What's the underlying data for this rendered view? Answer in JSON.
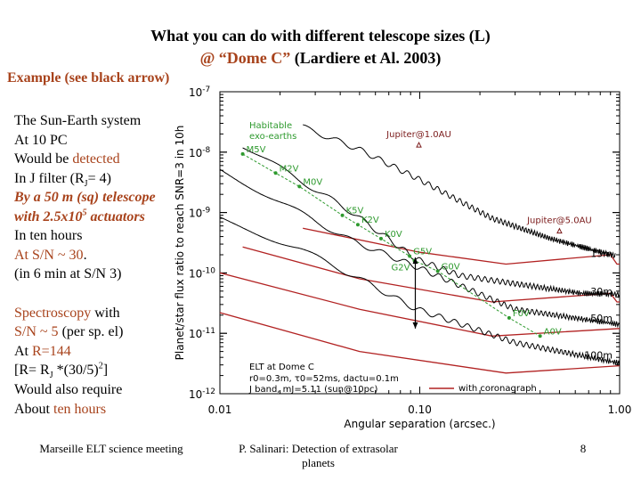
{
  "slide": {
    "title_line1": "What you can do with different telescope sizes (L)",
    "title_line2_colored": "@ “Dome C”",
    "title_line2_rest": " (Lardiere et Al. 2003)",
    "example_label": "Example (see black arrow)",
    "left_text": {
      "l1": "The Sun-Earth system",
      "l2": "At 10 PC",
      "l3a": "Would be ",
      "l3b": "detected",
      "l4a": "In J filter (R",
      "l4sub": "J",
      "l4b": "= 4)",
      "l5": "By a 50 m (sq) telescope",
      "l6a": "with 2.5x10",
      "l6sup": "5",
      "l6b": " actuators",
      "l7": "In ten hours",
      "l8a": "At S/N ~ 30",
      "l8b": ".",
      "l9": "(in 6 min at S/N 3)",
      "s1a": "Spectroscopy",
      "s1b": " with",
      "s2a": "S/N ~ 5",
      "s2b": " (per sp. el)",
      "s3a": "At ",
      "s3b": "R=144",
      "s4a": "[R= R",
      "s4sub": "J",
      "s4b": " *(30/5)",
      "s4sup": "2",
      "s4c": "]",
      "s5": "Would also require",
      "s6a": "About ",
      "s6b": "ten hours"
    },
    "footer": {
      "left": "Marseille ELT science meeting",
      "center_line1": "P. Salinari: Detection of extrasolar",
      "center_line2": "planets",
      "page_number": "8"
    },
    "colors": {
      "accent_brown": "#a8431c",
      "coronagraph_red": "#b22222",
      "habitable_green": "#2e9a2e",
      "jupiter_marker": "#7a1a1a"
    }
  },
  "chart_data": {
    "type": "line",
    "xlabel": "Angular separation (arcsec.)",
    "ylabel": "Planet/star flux ratio to reach SNR=3 in 10h",
    "xscale": "log",
    "yscale": "log",
    "xlim": [
      0.01,
      1.0
    ],
    "ylim": [
      1e-12,
      1e-07
    ],
    "x_tick_labels": [
      "0.01",
      "0.10",
      "1.00"
    ],
    "y_tick_labels": [
      {
        "base": "10",
        "exp": "-7"
      },
      {
        "base": "10",
        "exp": "-8"
      },
      {
        "base": "10",
        "exp": "-9"
      },
      {
        "base": "10",
        "exp": "-10"
      },
      {
        "base": "10",
        "exp": "-11"
      },
      {
        "base": "10",
        "exp": "-12"
      }
    ],
    "grid": false,
    "series": [
      {
        "name": "15m",
        "without_coronagraph": [
          [
            0.026,
            2.6e-08
          ],
          [
            0.05,
            1.1e-08
          ],
          [
            0.1,
            3.5e-09
          ],
          [
            0.23,
            8e-10
          ],
          [
            0.45,
            3.7e-10
          ],
          [
            0.96,
            1.9e-10
          ]
        ],
        "with_coronagraph": [
          [
            0.026,
            5.5e-10
          ],
          [
            0.1,
            2.2e-10
          ],
          [
            0.27,
            1.4e-10
          ],
          [
            0.9,
            2e-10
          ],
          [
            0.97,
            1.4e-10
          ],
          [
            1.0,
            1.4e-10
          ]
        ]
      },
      {
        "name": "30m",
        "without_coronagraph": [
          [
            0.013,
            1.3e-08
          ],
          [
            0.044,
            1.1e-09
          ],
          [
            0.096,
            1.7e-10
          ],
          [
            0.16,
            9e-11
          ],
          [
            0.64,
            4.6e-11
          ],
          [
            1.0,
            4.4e-11
          ]
        ],
        "with_coronagraph": [
          [
            0.013,
            2.7e-10
          ],
          [
            0.05,
            8e-11
          ],
          [
            0.23,
            3.3e-11
          ],
          [
            0.9,
            4.6e-11
          ],
          [
            0.97,
            3.3e-11
          ],
          [
            1.0,
            3.3e-11
          ]
        ]
      },
      {
        "name": "50m",
        "without_coronagraph": [
          [
            0.01,
            5.2e-09
          ],
          [
            0.025,
            1e-09
          ],
          [
            0.045,
            3.5e-10
          ],
          [
            0.1,
            1.2e-10
          ],
          [
            0.3,
            2.5e-11
          ],
          [
            1.0,
            1.4e-11
          ]
        ],
        "with_coronagraph": [
          [
            0.01,
            1e-10
          ],
          [
            0.05,
            2.5e-11
          ],
          [
            0.23,
            9e-12
          ],
          [
            1.0,
            1.2e-11
          ]
        ]
      },
      {
        "name": "100m",
        "without_coronagraph": [
          [
            0.01,
            8e-10
          ],
          [
            0.025,
            2.5e-10
          ],
          [
            0.05,
            8e-11
          ],
          [
            0.094,
            2.6e-11
          ],
          [
            0.3,
            7e-12
          ],
          [
            1.0,
            3.2e-12
          ]
        ],
        "with_coronagraph": [
          [
            0.01,
            2.2e-11
          ],
          [
            0.05,
            5e-12
          ],
          [
            0.27,
            2.2e-12
          ],
          [
            1.0,
            2.9e-12
          ]
        ]
      }
    ],
    "habitable_exo_earths": {
      "label_line1": "Habitable",
      "label_line2": "exo-earths",
      "points": [
        {
          "label": "M5V",
          "x": 0.013,
          "y": 9.3e-09
        },
        {
          "label": "M2V",
          "x": 0.019,
          "y": 4.5e-09
        },
        {
          "label": "M0V",
          "x": 0.025,
          "y": 2.7e-09
        },
        {
          "label": "K5V",
          "x": 0.041,
          "y": 9e-10
        },
        {
          "label": "K2V",
          "x": 0.049,
          "y": 6.3e-10
        },
        {
          "label": "K0V",
          "x": 0.064,
          "y": 3.7e-10
        },
        {
          "label": "G5V",
          "x": 0.089,
          "y": 1.9e-10
        },
        {
          "label": "G2V",
          "x": 0.094,
          "y": 1.6e-10
        },
        {
          "label": "G0V",
          "x": 0.123,
          "y": 1.07e-10
        },
        {
          "label": "F0V",
          "x": 0.28,
          "y": 1.8e-11
        },
        {
          "label": "A0V",
          "x": 0.4,
          "y": 9e-12
        }
      ]
    },
    "jupiters": [
      {
        "label": "Jupiter@1.0AU",
        "x": 0.099,
        "y": 1.3e-08
      },
      {
        "label": "Jupiter@5.0AU",
        "x": 0.5,
        "y": 4.9e-10
      }
    ],
    "arrow": {
      "x": 0.095,
      "y_top": 1.8e-10,
      "y_bottom": 1.2e-11
    },
    "annotation": {
      "line1": "ELT at Dome C",
      "line2": "r0=0.3m, τ0=52ms, dactu=0.1m",
      "line3": "J band, mJ=5.11 (sun@10pc)"
    },
    "legend": {
      "entry": "with coronagraph",
      "placement": "bottom-center"
    }
  }
}
